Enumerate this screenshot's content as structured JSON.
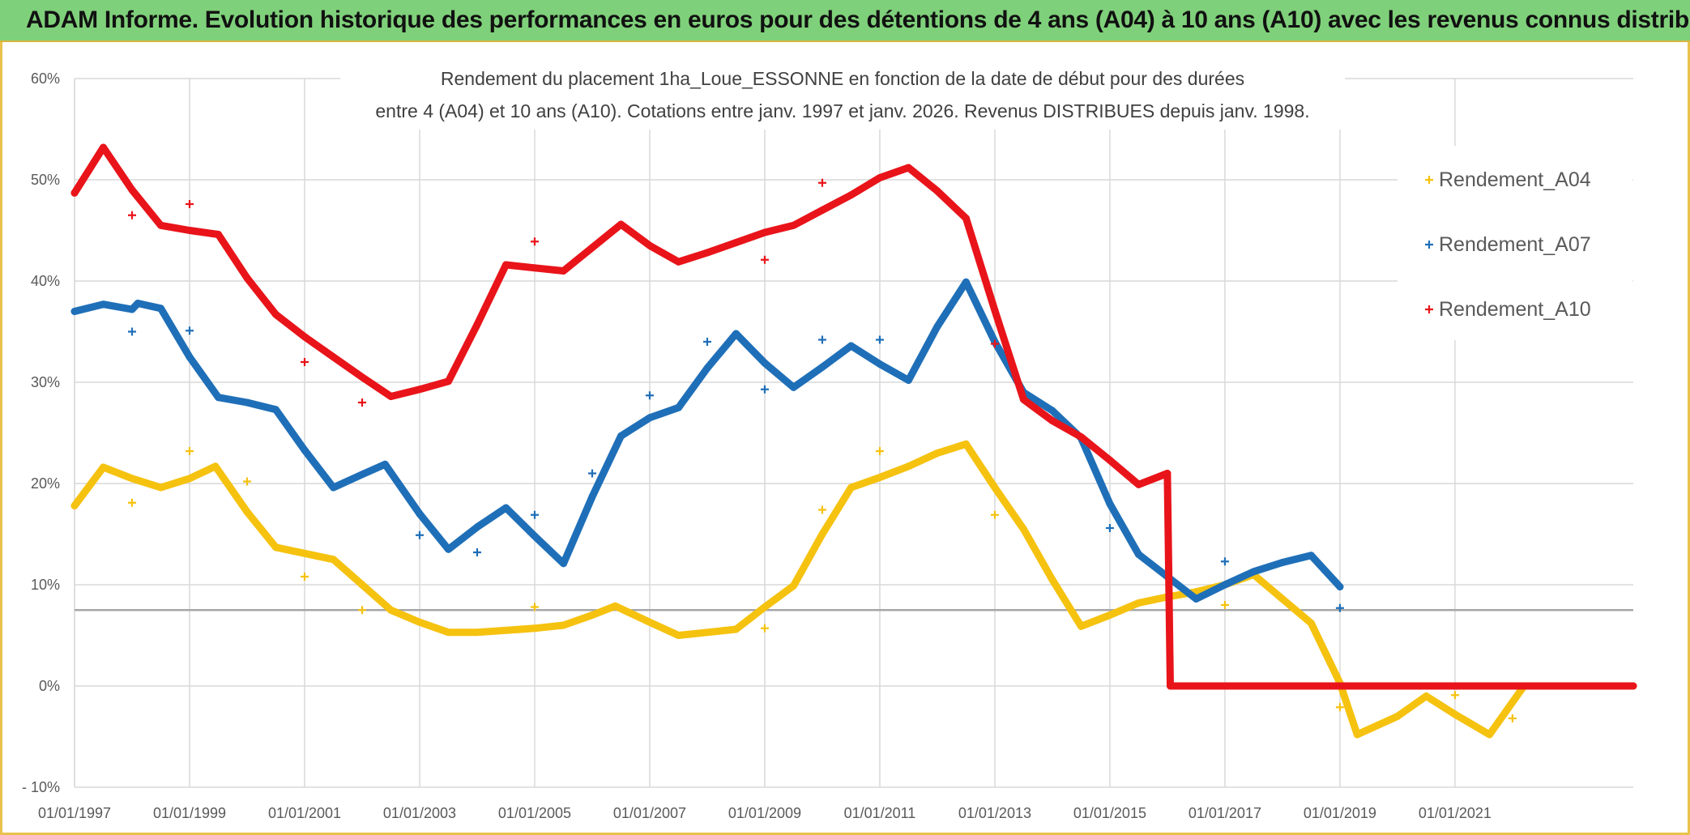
{
  "header": {
    "banner_title": "ADAM Informe. Evolution historique des performances en euros pour des détentions de 4 ans (A04) à 10 ans (A10) avec les revenus connus distribués"
  },
  "colors": {
    "banner_bg": "#7fd07a",
    "a04": "#f5c20f",
    "a07": "#1f6fb8",
    "a10": "#e8141a",
    "grid": "#d9d9d9",
    "ref_line": "#a6a6a6"
  },
  "chart_data": {
    "type": "scatter",
    "title_lines": [
      "Rendement du placement 1ha_Loue_ESSONNE en fonction de la date de début pour des durées",
      "entre 4 (A04) et 10 ans (A10). Cotations entre janv. 1997 et janv. 2026. Revenus DISTRIBUES depuis janv. 1998."
    ],
    "xlabel": "",
    "ylabel": "",
    "x_range": [
      1997.0,
      2024.1
    ],
    "ylim": [
      -10,
      60
    ],
    "y_ticks": [
      -10,
      0,
      10,
      20,
      30,
      40,
      50,
      60
    ],
    "y_tick_labels": [
      "- 10%",
      "0%",
      "10%",
      "20%",
      "30%",
      "40%",
      "50%",
      "60%"
    ],
    "x_ticks": [
      1997,
      1999,
      2001,
      2003,
      2005,
      2007,
      2009,
      2011,
      2013,
      2015,
      2017,
      2019,
      2021
    ],
    "x_tick_labels": [
      "01/01/1997",
      "01/01/1999",
      "01/01/2001",
      "01/01/2003",
      "01/01/2005",
      "01/01/2007",
      "01/01/2009",
      "01/01/2011",
      "01/01/2013",
      "01/01/2015",
      "01/01/2017",
      "01/01/2019",
      "01/01/2021"
    ],
    "reference_line_y": 7.5,
    "grid": true,
    "legend": {
      "position": "right",
      "entries": [
        "Rendement_A04",
        "Rendement_A07",
        "Rendement_A10"
      ]
    },
    "series": [
      {
        "name": "Rendement_A04",
        "color_key": "a04",
        "points": [
          [
            1997.0,
            17.8
          ],
          [
            1997.5,
            21.6
          ],
          [
            1998.0,
            20.5
          ],
          [
            1998.5,
            19.6
          ],
          [
            1999.0,
            20.5
          ],
          [
            1999.45,
            21.7
          ],
          [
            2000.0,
            17.2
          ],
          [
            2000.5,
            13.7
          ],
          [
            2001.0,
            13.1
          ],
          [
            2001.5,
            12.5
          ],
          [
            2002.0,
            10.0
          ],
          [
            2002.5,
            7.5
          ],
          [
            2003.0,
            6.3
          ],
          [
            2003.5,
            5.3
          ],
          [
            2004.0,
            5.3
          ],
          [
            2005.0,
            5.7
          ],
          [
            2005.5,
            6.0
          ],
          [
            2006.0,
            7.0
          ],
          [
            2006.4,
            7.9
          ],
          [
            2007.0,
            6.3
          ],
          [
            2007.5,
            5.0
          ],
          [
            2008.0,
            5.3
          ],
          [
            2008.5,
            5.6
          ],
          [
            2009.0,
            7.8
          ],
          [
            2009.5,
            9.9
          ],
          [
            2010.0,
            15.0
          ],
          [
            2010.5,
            19.6
          ],
          [
            2011.0,
            20.6
          ],
          [
            2011.5,
            21.7
          ],
          [
            2012.0,
            23.0
          ],
          [
            2012.5,
            23.9
          ],
          [
            2013.0,
            19.6
          ],
          [
            2013.5,
            15.5
          ],
          [
            2014.0,
            10.5
          ],
          [
            2014.5,
            5.9
          ],
          [
            2015.0,
            7.0
          ],
          [
            2015.5,
            8.2
          ],
          [
            2016.0,
            8.8
          ],
          [
            2016.5,
            9.3
          ],
          [
            2017.0,
            10.0
          ],
          [
            2017.5,
            11.0
          ],
          [
            2018.0,
            8.6
          ],
          [
            2018.5,
            6.2
          ],
          [
            2019.0,
            0.3
          ],
          [
            2019.3,
            -4.8
          ],
          [
            2020.0,
            -3.0
          ],
          [
            2020.5,
            -1.0
          ],
          [
            2021.0,
            -2.8
          ],
          [
            2021.6,
            -4.8
          ],
          [
            2022.2,
            0.0
          ],
          [
            2024.1,
            0.0
          ]
        ],
        "outliers": [
          [
            1998.0,
            18.1
          ],
          [
            1999.0,
            23.2
          ],
          [
            2000.0,
            20.2
          ],
          [
            2001.0,
            10.8
          ],
          [
            2002.0,
            7.5
          ],
          [
            2005.0,
            7.8
          ],
          [
            2009.0,
            5.7
          ],
          [
            2010.0,
            17.4
          ],
          [
            2011.0,
            23.2
          ],
          [
            2013.0,
            16.9
          ],
          [
            2017.0,
            8.0
          ],
          [
            2019.0,
            -2.1
          ],
          [
            2021.0,
            -0.9
          ],
          [
            2022.0,
            -3.2
          ]
        ]
      },
      {
        "name": "Rendement_A07",
        "color_key": "a07",
        "points": [
          [
            1997.0,
            37.0
          ],
          [
            1997.5,
            37.7
          ],
          [
            1998.0,
            37.2
          ],
          [
            1998.1,
            37.8
          ],
          [
            1998.5,
            37.3
          ],
          [
            1999.0,
            32.5
          ],
          [
            1999.5,
            28.5
          ],
          [
            2000.0,
            28.0
          ],
          [
            2000.5,
            27.3
          ],
          [
            2001.0,
            23.3
          ],
          [
            2001.5,
            19.6
          ],
          [
            2002.0,
            20.9
          ],
          [
            2002.4,
            21.9
          ],
          [
            2003.0,
            17.0
          ],
          [
            2003.5,
            13.5
          ],
          [
            2004.0,
            15.7
          ],
          [
            2004.5,
            17.6
          ],
          [
            2005.0,
            14.8
          ],
          [
            2005.5,
            12.1
          ],
          [
            2006.0,
            18.7
          ],
          [
            2006.5,
            24.7
          ],
          [
            2007.0,
            26.5
          ],
          [
            2007.5,
            27.5
          ],
          [
            2008.0,
            31.4
          ],
          [
            2008.5,
            34.8
          ],
          [
            2009.0,
            31.9
          ],
          [
            2009.5,
            29.5
          ],
          [
            2010.0,
            31.5
          ],
          [
            2010.5,
            33.6
          ],
          [
            2011.0,
            31.8
          ],
          [
            2011.5,
            30.2
          ],
          [
            2012.0,
            35.5
          ],
          [
            2012.5,
            39.9
          ],
          [
            2013.0,
            34.0
          ],
          [
            2013.5,
            29.0
          ],
          [
            2014.0,
            27.2
          ],
          [
            2014.5,
            24.5
          ],
          [
            2015.0,
            18.0
          ],
          [
            2015.5,
            13.0
          ],
          [
            2016.0,
            10.8
          ],
          [
            2016.5,
            8.6
          ],
          [
            2017.0,
            10.0
          ],
          [
            2017.5,
            11.3
          ],
          [
            2018.0,
            12.2
          ],
          [
            2018.5,
            12.9
          ],
          [
            2019.0,
            9.8
          ]
        ],
        "outliers": [
          [
            1998.0,
            35.0
          ],
          [
            1999.0,
            35.1
          ],
          [
            2003.0,
            14.9
          ],
          [
            2004.0,
            13.2
          ],
          [
            2005.0,
            16.9
          ],
          [
            2006.0,
            21.0
          ],
          [
            2007.0,
            28.7
          ],
          [
            2008.0,
            34.0
          ],
          [
            2009.0,
            29.3
          ],
          [
            2010.0,
            34.2
          ],
          [
            2011.0,
            34.2
          ],
          [
            2015.0,
            15.6
          ],
          [
            2017.0,
            12.3
          ],
          [
            2019.0,
            7.7
          ]
        ]
      },
      {
        "name": "Rendement_A10",
        "color_key": "a10",
        "points": [
          [
            1997.0,
            48.7
          ],
          [
            1997.5,
            53.2
          ],
          [
            1998.0,
            49.0
          ],
          [
            1998.5,
            45.5
          ],
          [
            1999.0,
            45.0
          ],
          [
            1999.5,
            44.6
          ],
          [
            2000.0,
            40.3
          ],
          [
            2000.5,
            36.7
          ],
          [
            2001.0,
            34.5
          ],
          [
            2001.5,
            32.5
          ],
          [
            2002.0,
            30.5
          ],
          [
            2002.5,
            28.6
          ],
          [
            2003.0,
            29.3
          ],
          [
            2003.5,
            30.1
          ],
          [
            2004.0,
            35.7
          ],
          [
            2004.5,
            41.6
          ],
          [
            2005.0,
            41.3
          ],
          [
            2005.5,
            41.0
          ],
          [
            2006.0,
            43.3
          ],
          [
            2006.5,
            45.6
          ],
          [
            2007.0,
            43.5
          ],
          [
            2007.5,
            41.9
          ],
          [
            2008.0,
            42.8
          ],
          [
            2008.5,
            43.8
          ],
          [
            2009.0,
            44.8
          ],
          [
            2009.5,
            45.5
          ],
          [
            2010.0,
            47.0
          ],
          [
            2010.5,
            48.5
          ],
          [
            2011.0,
            50.2
          ],
          [
            2011.5,
            51.2
          ],
          [
            2012.0,
            48.9
          ],
          [
            2012.5,
            46.2
          ],
          [
            2013.0,
            37.1
          ],
          [
            2013.5,
            28.3
          ],
          [
            2014.0,
            26.2
          ],
          [
            2014.5,
            24.6
          ],
          [
            2015.0,
            22.3
          ],
          [
            2015.5,
            19.9
          ],
          [
            2016.0,
            21.0
          ],
          [
            2016.05,
            0.0
          ],
          [
            2024.1,
            0.0
          ]
        ],
        "outliers": [
          [
            1998.0,
            46.5
          ],
          [
            1999.0,
            47.6
          ],
          [
            2001.0,
            32.0
          ],
          [
            2002.0,
            28.0
          ],
          [
            2005.0,
            43.9
          ],
          [
            2009.0,
            42.1
          ],
          [
            2010.0,
            49.7
          ],
          [
            2013.0,
            33.8
          ]
        ]
      }
    ]
  }
}
